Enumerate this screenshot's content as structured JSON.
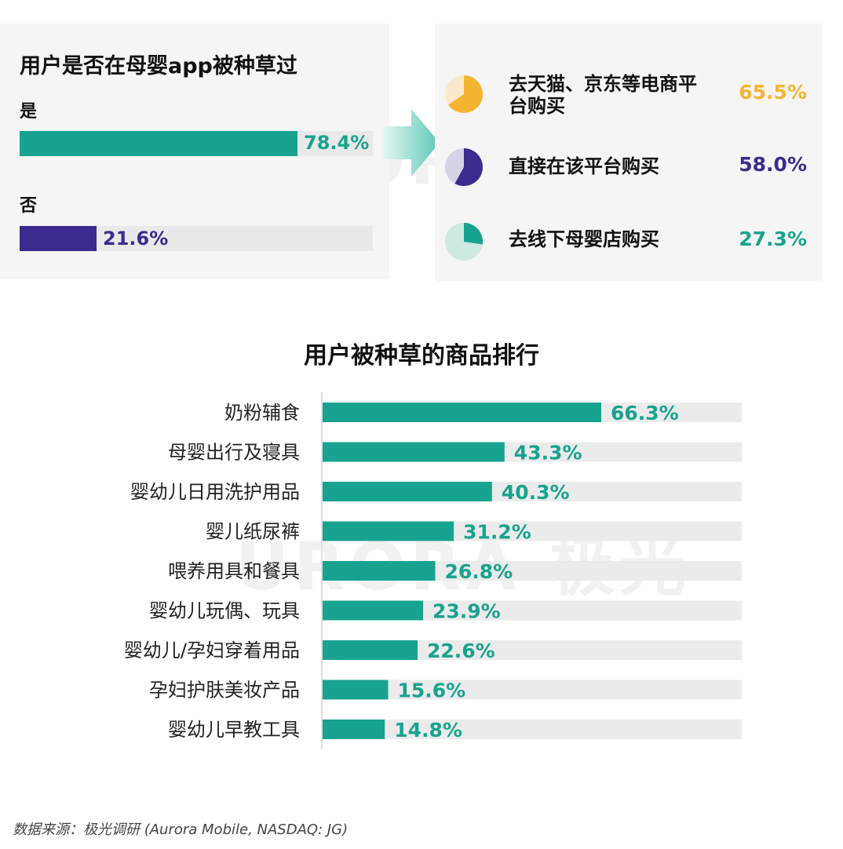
{
  "colors": {
    "teal": "#17a38f",
    "purple": "#3c2a8e",
    "orange": "#f4b532",
    "track": "#ebebeb",
    "panel_bg": "#f5f5f5"
  },
  "left_panel": {
    "title": "用户是否在母婴app被种草过",
    "bars": [
      {
        "label": "是",
        "value": 78.4,
        "value_text": "78.4%",
        "color": "#17a38f"
      },
      {
        "label": "否",
        "value": 21.6,
        "value_text": "21.6%",
        "color": "#3c2a8e"
      }
    ]
  },
  "right_panel": {
    "items": [
      {
        "label_line1": "去天猫、京东等电商平",
        "label_line2": "台购买",
        "value": 65.5,
        "value_text": "65.5%",
        "color": "#f4b532",
        "bg": "#fbe8cd"
      },
      {
        "label_line1": "直接在该平台购买",
        "label_line2": "",
        "value": 58.0,
        "value_text": "58.0%",
        "color": "#3c2a8e",
        "bg": "#d6d2e6"
      },
      {
        "label_line1": "去线下母婴店购买",
        "label_line2": "",
        "value": 27.3,
        "value_text": "27.3%",
        "color": "#17a38f",
        "bg": "#cde9e3"
      }
    ]
  },
  "chart_data": {
    "type": "bar",
    "orientation": "horizontal",
    "title": "用户被种草的商品排行",
    "categories": [
      "奶粉辅食",
      "母婴出行及寝具",
      "婴幼儿日用洗护用品",
      "婴儿纸尿裤",
      "喂养用具和餐具",
      "婴幼儿玩偶、玩具",
      "婴幼儿/孕妇穿着用品",
      "孕妇护肤美妆产品",
      "婴幼儿早教工具"
    ],
    "values": [
      66.3,
      43.3,
      40.3,
      31.2,
      26.8,
      23.9,
      22.6,
      15.6,
      14.8
    ],
    "value_labels": [
      "66.3%",
      "43.3%",
      "40.3%",
      "31.2%",
      "26.8%",
      "23.9%",
      "22.6%",
      "15.6%",
      "14.8%"
    ],
    "xlim": [
      0,
      100
    ],
    "color": "#17a38f"
  },
  "watermark_text": "URORA 极光",
  "source": "数据来源：极光调研 (Aurora Mobile, NASDAQ: JG)"
}
